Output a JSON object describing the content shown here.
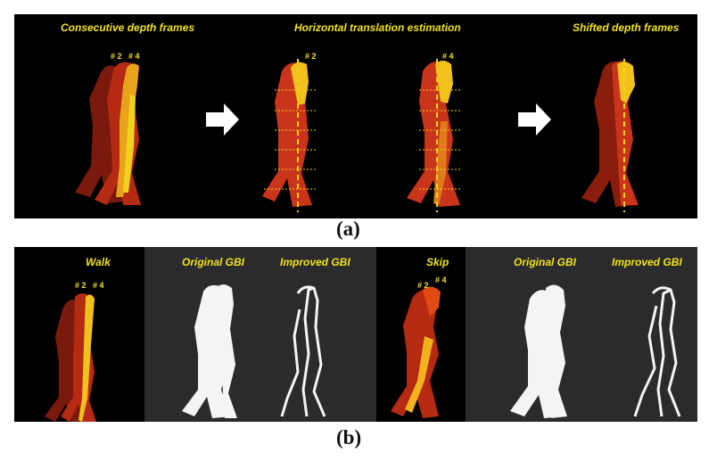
{
  "figure": {
    "panel_a": {
      "caption": "(a)",
      "labels": {
        "consecutive": "Consecutive depth frames",
        "horizontal": "Horizontal translation estimation",
        "shifted": "Shifted depth frames"
      },
      "tags": {
        "f2": "# 2",
        "f4": "# 4"
      }
    },
    "panel_b": {
      "caption": "(b)",
      "walk": {
        "label": "Walk",
        "original": "Original GBI",
        "improved": "Improved GBI"
      },
      "skip": {
        "label": "Skip",
        "original": "Original GBI",
        "improved": "Improved GBI"
      },
      "tags": {
        "f2": "# 2",
        "f4": "# 4"
      }
    }
  },
  "colors": {
    "label_yellow": "#f2e21d",
    "dark_red": "#6e150b",
    "red": "#b92b12",
    "orange": "#e46a1a",
    "yellow": "#f2d21b"
  }
}
